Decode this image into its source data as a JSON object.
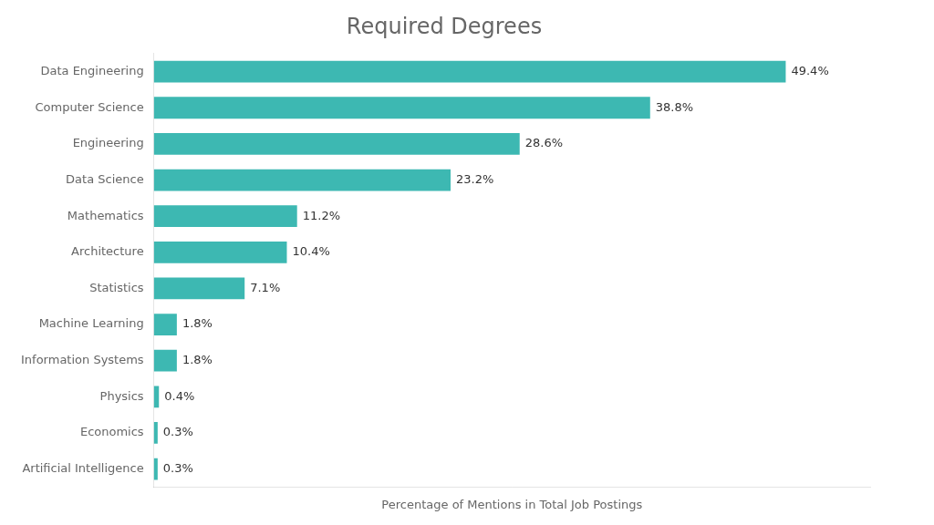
{
  "chart_data": {
    "type": "bar",
    "orientation": "horizontal",
    "title": "Required Degrees",
    "x_label": "Percentage of Mentions in Total Job Postings",
    "categories": [
      "Data Engineering",
      "Computer Science",
      "Engineering",
      "Data Science",
      "Mathematics",
      "Architecture",
      "Statistics",
      "Machine Learning",
      "Information Systems",
      "Physics",
      "Economics",
      "Artificial Intelligence"
    ],
    "values": [
      49.4,
      38.8,
      28.6,
      23.2,
      11.2,
      10.4,
      7.1,
      1.8,
      1.8,
      0.4,
      0.3,
      0.3
    ],
    "value_labels": [
      "49.4%",
      "38.8%",
      "28.6%",
      "23.2%",
      "11.2%",
      "10.4%",
      "7.1%",
      "1.8%",
      "1.8%",
      "0.4%",
      "0.3%",
      "0.3%"
    ],
    "data_labels": true,
    "color": "#3db8b2",
    "xlim": [
      0,
      56
    ],
    "tick_labels": "y",
    "grid": false
  }
}
